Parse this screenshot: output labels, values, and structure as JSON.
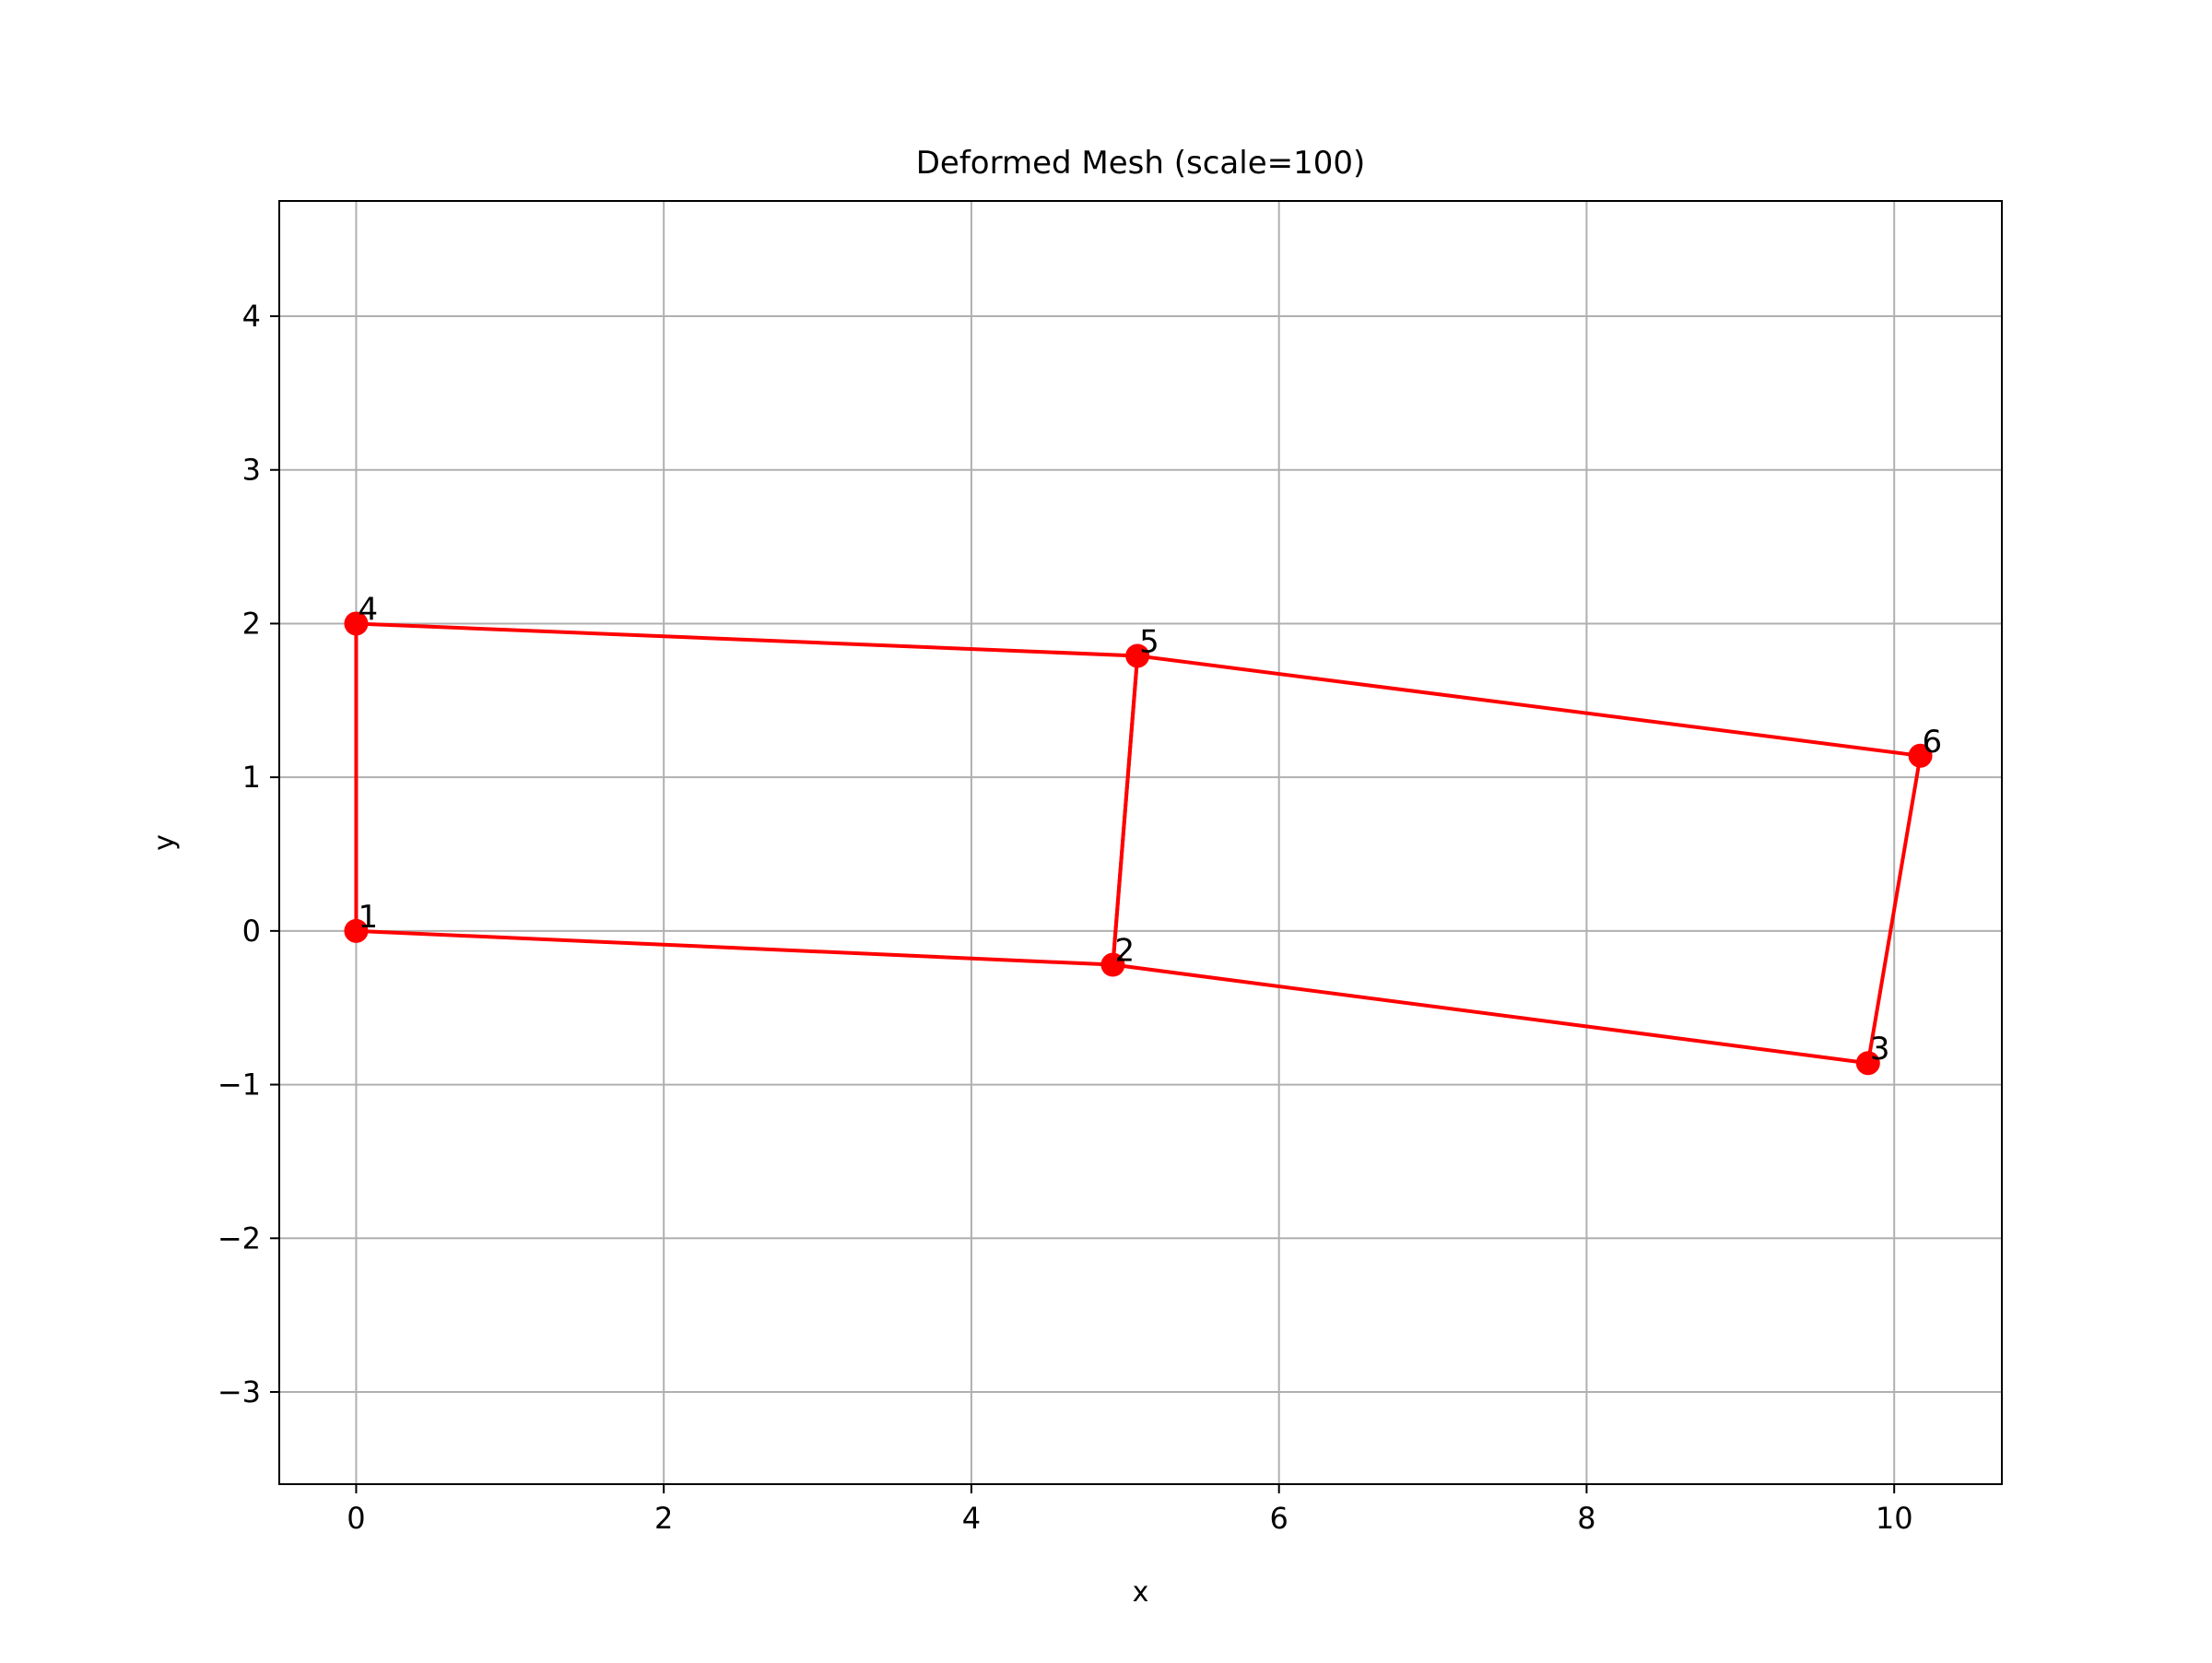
{
  "chart_data": {
    "type": "line",
    "title": "Deformed Mesh (scale=100)",
    "xlabel": "x",
    "ylabel": "y",
    "xlim": [
      -0.5,
      10.7
    ],
    "ylim": [
      -3.6,
      4.75
    ],
    "xticks": [
      0,
      2,
      4,
      6,
      8,
      10
    ],
    "yticks": [
      -3,
      -2,
      -1,
      0,
      1,
      2,
      3,
      4
    ],
    "grid": true,
    "line_color": "#ff0000",
    "marker_color": "#ff0000",
    "grid_color": "#b0b0b0",
    "nodes": [
      {
        "label": "1",
        "x": 0.0,
        "y": 0.0
      },
      {
        "label": "2",
        "x": 4.92,
        "y": -0.22
      },
      {
        "label": "3",
        "x": 9.83,
        "y": -0.86
      },
      {
        "label": "4",
        "x": 0.0,
        "y": 2.0
      },
      {
        "label": "5",
        "x": 5.08,
        "y": 1.79
      },
      {
        "label": "6",
        "x": 10.17,
        "y": 1.14
      }
    ],
    "elements": [
      [
        "1",
        "2",
        "5",
        "4"
      ],
      [
        "2",
        "3",
        "6",
        "5"
      ]
    ]
  }
}
